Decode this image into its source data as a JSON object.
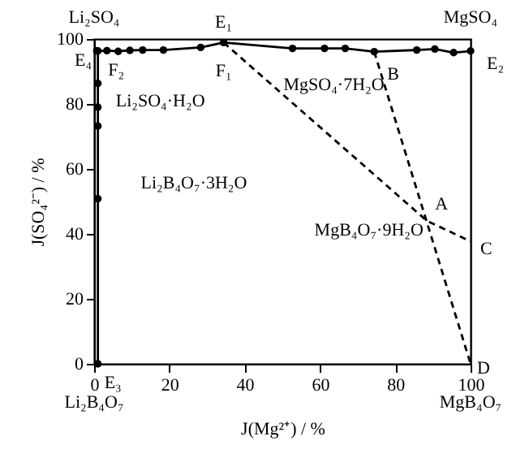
{
  "chart_data": {
    "type": "line",
    "xlabel": "J(Mg²⁺) / %",
    "ylabel": "J(SO₄²⁻) / %",
    "xlim": [
      0,
      100
    ],
    "ylim": [
      0,
      100
    ],
    "xticks": [
      0,
      20,
      40,
      60,
      80,
      100
    ],
    "yticks": [
      0,
      20,
      40,
      60,
      80,
      100
    ],
    "series": [
      {
        "color": "#000000",
        "marker": "circle",
        "line_style": "solid",
        "x": [
          0.7,
          3.4,
          6.4,
          9.5,
          12.9,
          18.4,
          28.3,
          34.4,
          52.7,
          61.2,
          66.7,
          74.4,
          85.7,
          90.5,
          95.5,
          100
        ],
        "values": [
          96.3,
          96.4,
          96.2,
          96.5,
          96.6,
          96.6,
          97.4,
          98.9,
          97.1,
          97.1,
          97.1,
          96.1,
          96.6,
          96.9,
          95.8,
          96.3
        ]
      },
      {
        "color": "#000000",
        "marker": "circle",
        "line_style": "solid",
        "x": [
          1,
          1,
          1,
          1,
          1,
          1
        ],
        "values": [
          0,
          50.8,
          73.2,
          79,
          86.3,
          96.3
        ]
      },
      {
        "color": "#000000",
        "marker": "none",
        "line_style": "dashed",
        "x": [
          34.4,
          88.4,
          100
        ],
        "values": [
          98.9,
          44,
          37.7
        ]
      },
      {
        "color": "#000000",
        "marker": "none",
        "line_style": "dashed",
        "x": [
          74.4,
          100
        ],
        "values": [
          96.1,
          0
        ]
      }
    ],
    "annotations": [
      "Li₂SO₄",
      "MgSO₄",
      {
        "text": "Li₂B₄O₇",
        "x": 0,
        "y": 0
      },
      {
        "text": "MgB₄O₇",
        "x": 100,
        "y": 0
      },
      {
        "text": "E₁",
        "x": 34.4,
        "y": 98.9
      },
      {
        "text": "E₂",
        "x": 100,
        "y": 96.3
      },
      {
        "text": "E₃",
        "x": 1,
        "y": 0
      },
      {
        "text": "E₄",
        "x": 0.7,
        "y": 96.3
      },
      {
        "text": "F₁",
        "x": 34.4,
        "y": 98.9
      },
      {
        "text": "F₂",
        "x": 0.7,
        "y": 96.3
      },
      {
        "text": "A",
        "x": 88.4,
        "y": 44
      },
      {
        "text": "B",
        "x": 74.4,
        "y": 96.1
      },
      {
        "text": "C",
        "x": 100,
        "y": 37.7
      },
      {
        "text": "D",
        "x": 100,
        "y": 0
      },
      "Li₂SO₄·H₂O",
      "MgSO₄·7H₂O",
      "Li₂B₄O₇·3H₂O",
      "MgB₄O₇·9H₂O"
    ]
  }
}
